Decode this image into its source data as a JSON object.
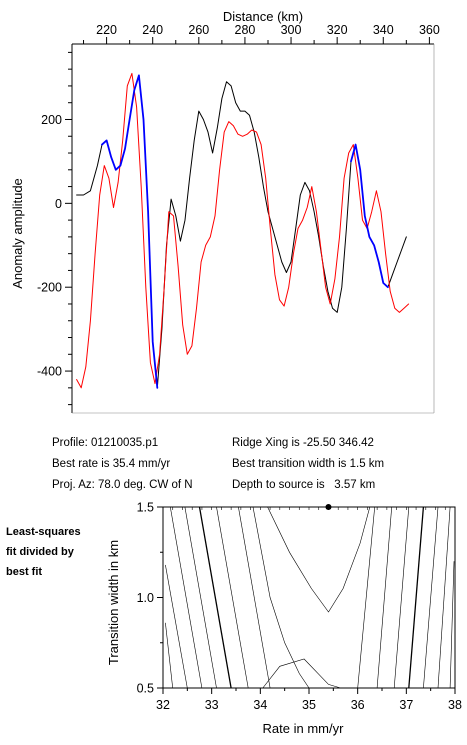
{
  "chart_data": [
    {
      "type": "line",
      "xlabel": "Distance (km)",
      "ylabel": "Anomaly amplitude",
      "xlim": [
        205,
        362
      ],
      "ylim": [
        -500,
        380
      ],
      "x_ticks": [
        220,
        240,
        260,
        280,
        300,
        320,
        340,
        360
      ],
      "y_ticks": [
        200,
        0,
        -200,
        -400
      ],
      "series": [
        {
          "color": "#000000",
          "x": [
            207,
            210,
            213,
            216,
            218,
            220,
            222,
            224,
            226,
            228,
            230,
            232,
            234,
            236,
            238,
            240,
            242,
            244,
            246,
            248,
            250,
            252,
            254,
            256,
            258,
            260,
            262,
            264,
            266,
            268,
            270,
            272,
            274,
            276,
            278,
            280,
            282,
            284,
            286,
            288,
            290,
            292,
            294,
            296,
            298,
            300,
            302,
            304,
            306,
            308,
            310,
            312,
            314,
            316,
            318,
            320,
            322,
            324,
            326,
            328,
            330,
            332,
            334,
            336,
            338,
            340,
            342,
            344,
            346,
            348,
            350
          ],
          "values": [
            20,
            20,
            30,
            90,
            140,
            150,
            110,
            80,
            90,
            130,
            200,
            270,
            305,
            200,
            -20,
            -330,
            -440,
            -300,
            -100,
            10,
            -30,
            -90,
            -40,
            60,
            150,
            220,
            200,
            170,
            120,
            180,
            250,
            290,
            280,
            240,
            220,
            220,
            210,
            170,
            110,
            40,
            -20,
            -60,
            -100,
            -140,
            -165,
            -140,
            -60,
            20,
            50,
            30,
            -20,
            -80,
            -150,
            -210,
            -250,
            -260,
            -200,
            -60,
            100,
            140,
            80,
            -30,
            -80,
            -100,
            -140,
            -190,
            -200,
            -170,
            -140,
            -110,
            -80
          ]
        },
        {
          "color": "#ff0000",
          "x": [
            207,
            209,
            211,
            213,
            215,
            217,
            219,
            221,
            223,
            225,
            227,
            229,
            231,
            233,
            235,
            237,
            239,
            241,
            243,
            245,
            247,
            249,
            251,
            253,
            255,
            257,
            259,
            261,
            263,
            265,
            267,
            269,
            271,
            273,
            275,
            277,
            279,
            281,
            283,
            285,
            287,
            289,
            291,
            293,
            295,
            297,
            299,
            301,
            303,
            305,
            307,
            309,
            311,
            313,
            315,
            317,
            319,
            321,
            323,
            325,
            327,
            329,
            331,
            333,
            335,
            337,
            339,
            341,
            343,
            345,
            347,
            349,
            351
          ],
          "values": [
            -420,
            -440,
            -390,
            -280,
            -120,
            20,
            90,
            60,
            -10,
            50,
            150,
            280,
            310,
            230,
            40,
            -200,
            -380,
            -430,
            -360,
            -200,
            -20,
            -30,
            -150,
            -290,
            -360,
            -340,
            -250,
            -140,
            -100,
            -80,
            -30,
            80,
            170,
            195,
            185,
            165,
            160,
            165,
            175,
            170,
            140,
            60,
            -60,
            -170,
            -230,
            -245,
            -200,
            -120,
            -60,
            -40,
            -10,
            40,
            -20,
            -110,
            -200,
            -240,
            -180,
            -80,
            60,
            120,
            140,
            60,
            -40,
            -60,
            -20,
            30,
            -20,
            -120,
            -210,
            -250,
            -260,
            -250,
            -240
          ]
        },
        {
          "color": "#0000ff",
          "x": [
            218,
            220,
            222,
            224,
            226,
            228,
            230,
            232,
            234,
            236,
            238,
            240,
            242
          ],
          "values": [
            140,
            150,
            110,
            80,
            90,
            130,
            200,
            270,
            305,
            200,
            -20,
            -330,
            -440
          ]
        },
        {
          "color": "#0000ff",
          "x": [
            326,
            328,
            330,
            332,
            334,
            336,
            338,
            340,
            342
          ],
          "values": [
            100,
            140,
            80,
            -30,
            -80,
            -100,
            -140,
            -190,
            -200
          ]
        }
      ]
    },
    {
      "type": "line",
      "xlabel": "Rate in mm/yr",
      "ylabel": "Transition width in km",
      "xlim": [
        32,
        38
      ],
      "ylim": [
        0.5,
        1.5
      ],
      "x_ticks": [
        32,
        33,
        34,
        35,
        36,
        37,
        38
      ],
      "y_ticks": [
        1.5,
        1.0,
        0.5
      ],
      "best_fit": {
        "x": 35.4,
        "y": 1.5
      }
    }
  ],
  "info": {
    "profile": "Profile: 01210035.p1",
    "best_rate": "Best rate is 35.4 mm/yr",
    "proj_az": "Proj. Az: 78.0 deg. CW of N",
    "ridge_xing": "Ridge Xing is -25.50 346.42",
    "best_width": "Best transition width is 1.5 km",
    "depth": "Depth to source is   3.57 km"
  },
  "note_lines": [
    "Least-squares",
    "fit divided by",
    "best fit"
  ]
}
